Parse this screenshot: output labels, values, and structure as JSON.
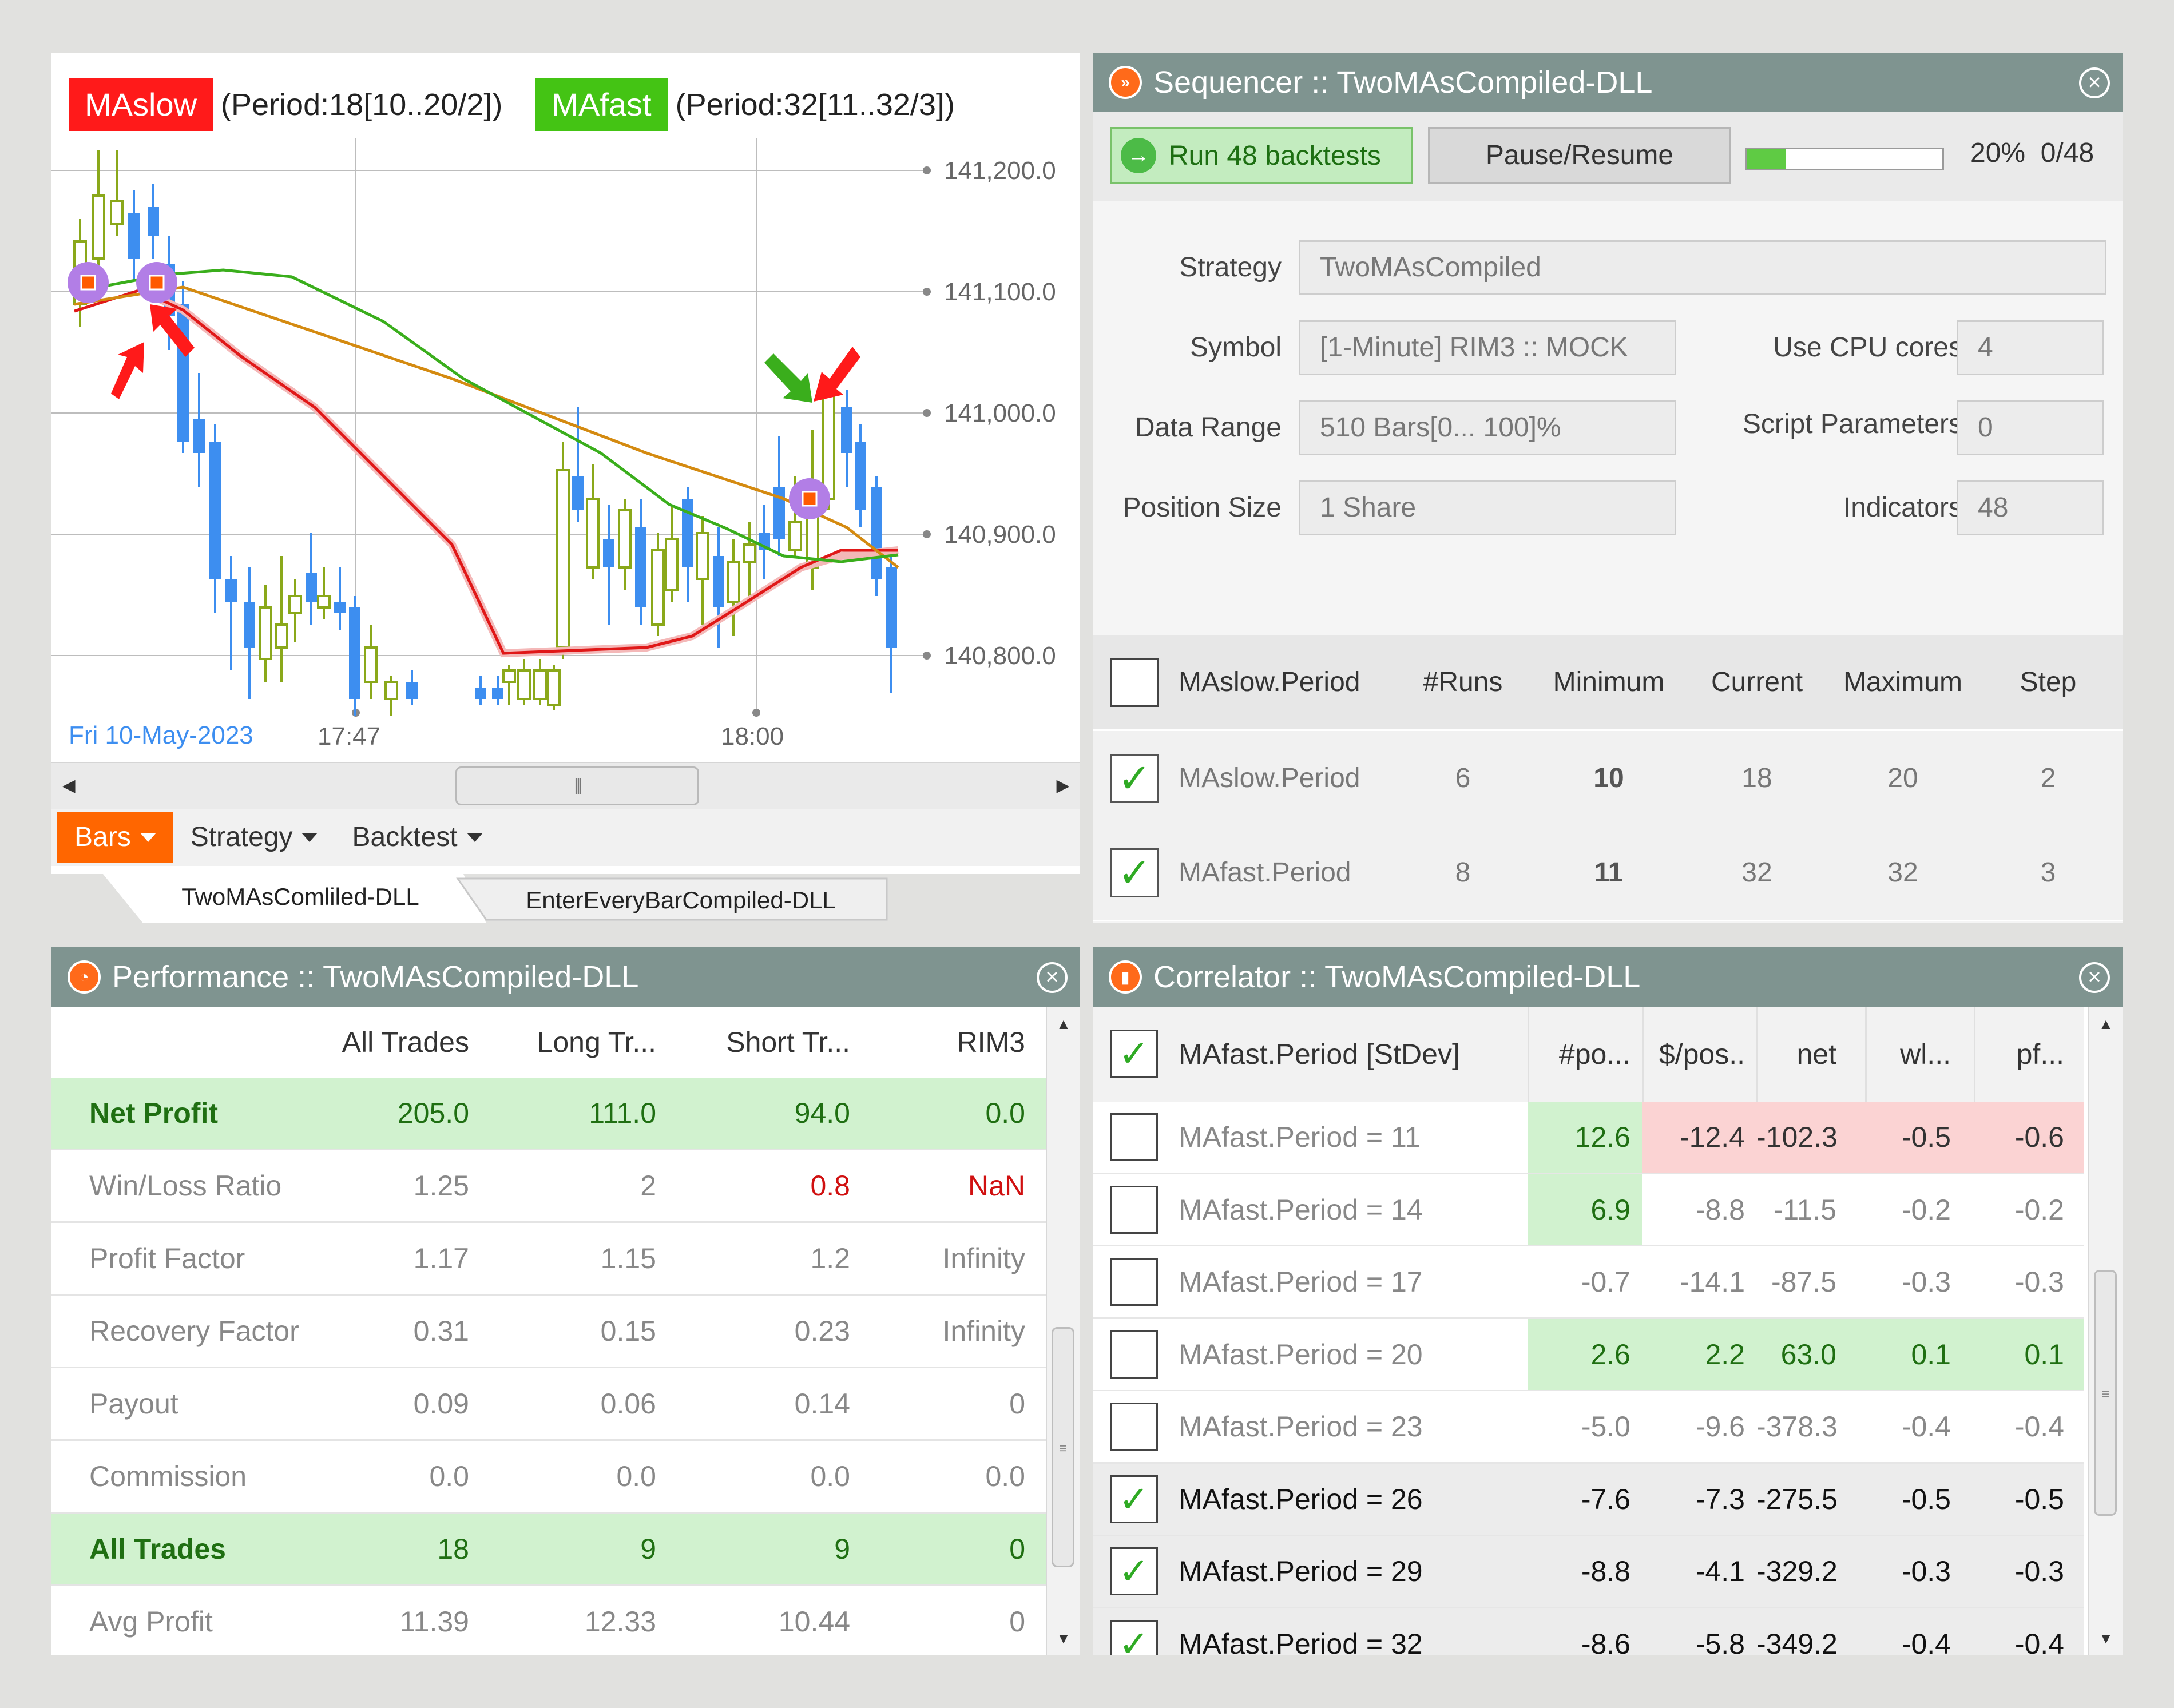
{
  "chart": {
    "legend": [
      {
        "tag": "MAslow",
        "params": "(Period:18[10..20/2])",
        "color": "#ff1a1a"
      },
      {
        "tag": "MAfast",
        "params": "(Period:32[11..32/3])",
        "color": "#44c414"
      }
    ],
    "price_labels": [
      "141,200.0",
      "141,100.0",
      "141,000.0",
      "140,900.0",
      "140,800.0"
    ],
    "date_label": "Fri 10-May-2023",
    "time_labels": [
      "17:47",
      "18:00"
    ],
    "menu": [
      "Bars",
      "Strategy",
      "Backtest"
    ],
    "tabs": [
      "TwoMAsComliled-DLL",
      "EnterEveryBarCompiled-DLL"
    ],
    "colors": {
      "bull": "#8aa81a",
      "bear": "#3d8ef0",
      "ma_slow": "#e01818",
      "ma_fast": "#3aae1c",
      "ma_other": "#d48a10",
      "marker": "#b27ee6"
    }
  },
  "sequencer": {
    "title": "Sequencer :: TwoMAsCompiled-DLL",
    "run_label": "Run 48 backtests",
    "pause_label": "Pause/Resume",
    "progress_percent": 20,
    "progress_text": "20%",
    "progress_count": "0/48",
    "fields": {
      "strategy_label": "Strategy",
      "strategy_value": "TwoMAsCompiled",
      "symbol_label": "Symbol",
      "symbol_value": "[1-Minute] RIM3 :: MOCK",
      "range_label": "Data Range",
      "range_value": "510 Bars[0... 100]%",
      "size_label": "Position Size",
      "size_value": "1 Share",
      "cpu_label": "Use CPU cores",
      "cpu_value": "4",
      "script_label": "Script Parameters",
      "script_value": "0",
      "ind_label": "Indicators",
      "ind_value": "48"
    },
    "table_headers": [
      "MAslow.Period",
      "#Runs",
      "Minimum",
      "Current",
      "Maximum",
      "Step"
    ],
    "rows": [
      {
        "name": "MAslow.Period",
        "runs": "6",
        "min": "10",
        "cur": "18",
        "max": "20",
        "step": "2"
      },
      {
        "name": "MAfast.Period",
        "runs": "8",
        "min": "11",
        "cur": "32",
        "max": "32",
        "step": "3"
      }
    ]
  },
  "performance": {
    "title": "Performance :: TwoMAsCompiled-DLL",
    "headers": [
      "All Trades",
      "Long Tr...",
      "Short Tr...",
      "RIM3"
    ],
    "rows": [
      {
        "label": "Net Profit",
        "v": [
          "205.0",
          "111.0",
          "94.0",
          "0.0"
        ]
      },
      {
        "label": "Win/Loss Ratio",
        "v": [
          "1.25",
          "2",
          "0.8",
          "NaN"
        ]
      },
      {
        "label": "Profit Factor",
        "v": [
          "1.17",
          "1.15",
          "1.2",
          "Infinity"
        ]
      },
      {
        "label": "Recovery Factor",
        "v": [
          "0.31",
          "0.15",
          "0.23",
          "Infinity"
        ]
      },
      {
        "label": "Payout",
        "v": [
          "0.09",
          "0.06",
          "0.14",
          "0"
        ]
      },
      {
        "label": "Commission",
        "v": [
          "0.0",
          "0.0",
          "0.0",
          "0.0"
        ]
      },
      {
        "label": "All Trades",
        "v": [
          "18",
          "9",
          "9",
          "0"
        ]
      },
      {
        "label": "Avg Profit",
        "v": [
          "11.39",
          "12.33",
          "10.44",
          "0"
        ]
      }
    ]
  },
  "correlator": {
    "title": "Correlator :: TwoMAsCompiled-DLL",
    "headers": [
      "MAfast.Period [StDev]",
      "#po...",
      "$/pos..",
      "net",
      "wl...",
      "pf..."
    ],
    "rows": [
      {
        "label": "MAfast.Period = 11",
        "v": [
          "12.6",
          "-12.4",
          "-102.3",
          "-0.5",
          "-0.6"
        ]
      },
      {
        "label": "MAfast.Period = 14",
        "v": [
          "6.9",
          "-8.8",
          "-11.5",
          "-0.2",
          "-0.2"
        ]
      },
      {
        "label": "MAfast.Period = 17",
        "v": [
          "-0.7",
          "-14.1",
          "-87.5",
          "-0.3",
          "-0.3"
        ]
      },
      {
        "label": "MAfast.Period = 20",
        "v": [
          "2.6",
          "2.2",
          "63.0",
          "0.1",
          "0.1"
        ]
      },
      {
        "label": "MAfast.Period = 23",
        "v": [
          "-5.0",
          "-9.6",
          "-378.3",
          "-0.4",
          "-0.4"
        ]
      },
      {
        "label": "MAfast.Period = 26",
        "v": [
          "-7.6",
          "-7.3",
          "-275.5",
          "-0.5",
          "-0.5"
        ]
      },
      {
        "label": "MAfast.Period = 29",
        "v": [
          "-8.8",
          "-4.1",
          "-329.2",
          "-0.3",
          "-0.3"
        ]
      },
      {
        "label": "MAfast.Period = 32",
        "v": [
          "-8.6",
          "-5.8",
          "-349.2",
          "-0.4",
          "-0.4"
        ]
      }
    ]
  }
}
